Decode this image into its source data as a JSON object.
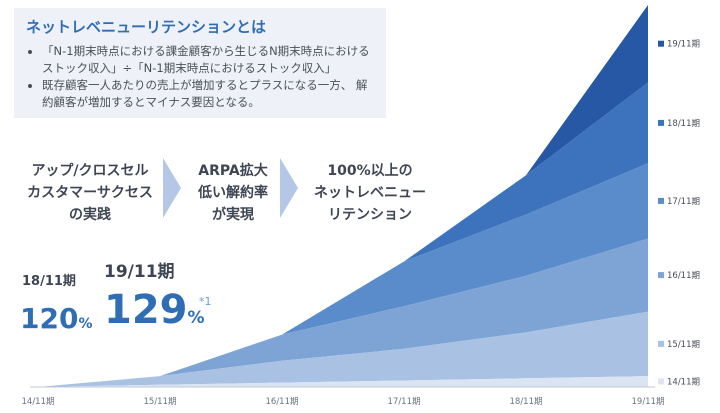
{
  "definition": {
    "title": "ネットレベニューリテンションとは",
    "bullets": [
      "「N-1期末時点における課金顧客から生じるN期末時点における ストック収入」÷「N-1期末時点におけるストック収入」",
      "既存顧客一人あたりの売上が増加するとプラスになる一方、 解約顧客が増加するとマイナス要因となる。"
    ]
  },
  "flow": [
    [
      "アップ/クロスセル",
      "カスタマーサクセス",
      "の実践"
    ],
    [
      "ARPA拡大",
      "低い解約率",
      "が実現"
    ],
    [
      "100%以上の",
      "ネットレベニュー",
      "リテンション"
    ]
  ],
  "kpi": {
    "prev_label": "18/11期",
    "prev_value": "120",
    "prev_unit": "%",
    "curr_label": "19/11期",
    "curr_value": "129",
    "curr_unit": "%",
    "note": "*1"
  },
  "colors": [
    "#dae4f3",
    "#a9c2e4",
    "#7ea4d6",
    "#5a8bca",
    "#3d73bd",
    "#2658a6"
  ],
  "chart_data": {
    "type": "area",
    "stacked": true,
    "x": [
      "14/11期",
      "15/11期",
      "16/11期",
      "17/11期",
      "18/11期",
      "19/11期"
    ],
    "series": [
      {
        "name": "14/11期",
        "values": [
          0.0,
          0.2,
          0.4,
          0.6,
          0.8,
          1.0
        ]
      },
      {
        "name": "15/11期",
        "values": [
          0,
          0.8,
          2.0,
          2.9,
          4.2,
          5.9
        ]
      },
      {
        "name": "16/11期",
        "values": [
          0,
          0,
          2.4,
          3.9,
          5.2,
          6.7
        ]
      },
      {
        "name": "17/11期",
        "values": [
          0,
          0,
          0,
          4.1,
          5.6,
          6.9
        ]
      },
      {
        "name": "18/11期",
        "values": [
          0,
          0,
          0,
          0,
          3.6,
          7.4
        ]
      },
      {
        "name": "19/11期",
        "values": [
          0,
          0,
          0,
          0,
          0,
          7.1
        ]
      }
    ],
    "ylim": [
      0,
      35
    ]
  }
}
